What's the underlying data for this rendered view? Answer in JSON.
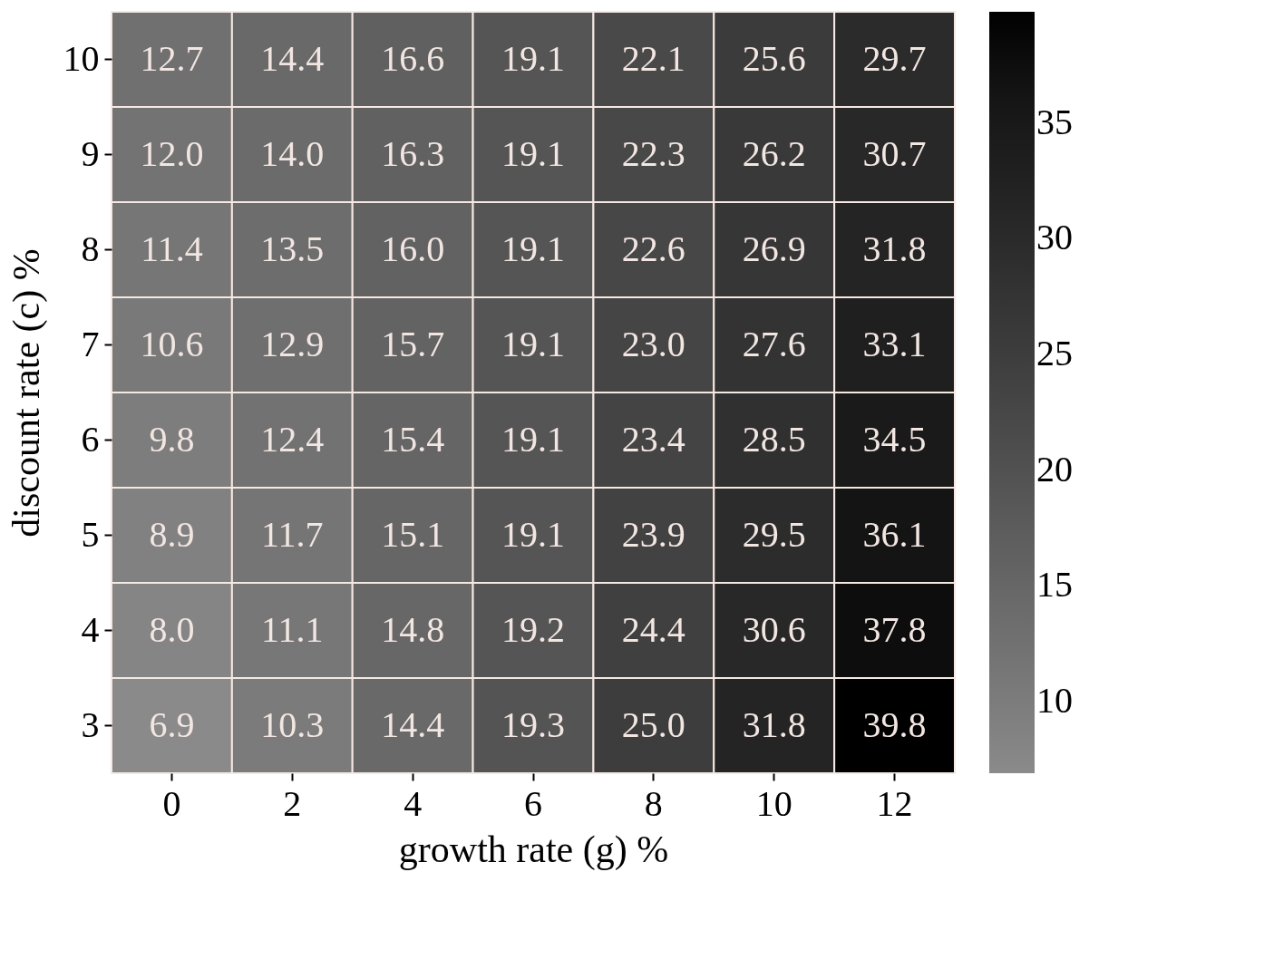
{
  "chart_data": {
    "type": "heatmap",
    "xlabel": "growth rate (g) %",
    "ylabel": "discount rate (c) %",
    "categories": [
      "0",
      "2",
      "4",
      "6",
      "8",
      "10",
      "12"
    ],
    "y_categories": [
      "10",
      "9",
      "8",
      "7",
      "6",
      "5",
      "4",
      "3"
    ],
    "cells": [
      [
        12.7,
        14.4,
        16.6,
        19.1,
        22.1,
        25.6,
        29.7
      ],
      [
        12.0,
        14.0,
        16.3,
        19.1,
        22.3,
        26.2,
        30.7
      ],
      [
        11.4,
        13.5,
        16.0,
        19.1,
        22.6,
        26.9,
        31.8
      ],
      [
        10.6,
        12.9,
        15.7,
        19.1,
        23.0,
        27.6,
        33.1
      ],
      [
        9.8,
        12.4,
        15.4,
        19.1,
        23.4,
        28.5,
        34.5
      ],
      [
        8.9,
        11.7,
        15.1,
        19.1,
        23.9,
        29.5,
        36.1
      ],
      [
        8.0,
        11.1,
        14.8,
        19.2,
        24.4,
        30.6,
        37.8
      ],
      [
        6.9,
        10.3,
        14.4,
        19.3,
        25.0,
        31.8,
        39.8
      ]
    ],
    "cell_labels": [
      [
        "12.7",
        "14.4",
        "16.6",
        "19.1",
        "22.1",
        "25.6",
        "29.7"
      ],
      [
        "12.0",
        "14.0",
        "16.3",
        "19.1",
        "22.3",
        "26.2",
        "30.7"
      ],
      [
        "11.4",
        "13.5",
        "16.0",
        "19.1",
        "22.6",
        "26.9",
        "31.8"
      ],
      [
        "10.6",
        "12.9",
        "15.7",
        "19.1",
        "23.0",
        "27.6",
        "33.1"
      ],
      [
        "9.8",
        "12.4",
        "15.4",
        "19.1",
        "23.4",
        "28.5",
        "34.5"
      ],
      [
        "8.9",
        "11.7",
        "15.1",
        "19.1",
        "23.9",
        "29.5",
        "36.1"
      ],
      [
        "8.0",
        "11.1",
        "14.8",
        "19.2",
        "24.4",
        "30.6",
        "37.8"
      ],
      [
        "6.9",
        "10.3",
        "14.4",
        "19.3",
        "25.0",
        "31.8",
        "39.8"
      ]
    ],
    "clim": [
      6.9,
      39.8
    ],
    "cticks": [
      10,
      15,
      20,
      25,
      30,
      35
    ],
    "data_labels": true,
    "grid": false
  }
}
